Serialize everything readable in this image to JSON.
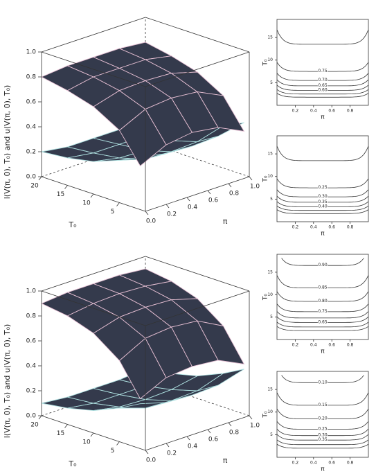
{
  "chart_data": [
    {
      "type": "surface",
      "zlabel": "l(V(π, 0), T₀)   and   u(V(π, 0), T₀)",
      "xlabel": "π",
      "ylabel": "T₀",
      "x": [
        0,
        0.25,
        0.5,
        0.75,
        1
      ],
      "y": [
        20,
        15,
        10,
        5,
        1
      ],
      "surfaces": [
        {
          "color": "#aee0e0",
          "z": [
            [
              0.2,
              0.17,
              0.17,
              0.17,
              0.2
            ],
            [
              0.22,
              0.19,
              0.19,
              0.19,
              0.22
            ],
            [
              0.26,
              0.22,
              0.21,
              0.22,
              0.26
            ],
            [
              0.34,
              0.28,
              0.27,
              0.28,
              0.34
            ],
            [
              0.42,
              0.38,
              0.37,
              0.38,
              0.42
            ]
          ]
        },
        {
          "color": "#e6bfd3",
          "z": [
            [
              0.8,
              0.82,
              0.82,
              0.82,
              0.8
            ],
            [
              0.76,
              0.8,
              0.8,
              0.8,
              0.76
            ],
            [
              0.7,
              0.76,
              0.77,
              0.76,
              0.7
            ],
            [
              0.58,
              0.68,
              0.7,
              0.68,
              0.58
            ],
            [
              0.35,
              0.45,
              0.48,
              0.45,
              0.35
            ]
          ]
        }
      ],
      "xlim": [
        0,
        1
      ],
      "xticks": [
        {
          "value": 0,
          "label": "0.0"
        },
        0.2,
        0.4,
        0.6,
        0.8,
        {
          "value": 1,
          "label": "1.0"
        }
      ],
      "ylim": [
        0,
        20
      ],
      "yticks": [
        5,
        10,
        15,
        20
      ],
      "zlim": [
        0,
        1
      ],
      "zticks": [
        {
          "value": 0,
          "label": "0.0"
        },
        0.2,
        0.4,
        0.6,
        0.8,
        {
          "value": 1,
          "label": "1.0"
        }
      ]
    },
    {
      "type": "contour",
      "xlabel": "π",
      "ylabel": "T₀",
      "xlim": [
        0,
        1
      ],
      "xticks": [
        0.2,
        0.4,
        0.6,
        0.8
      ],
      "ylim": [
        0,
        19
      ],
      "yticks": [
        5,
        10,
        15
      ],
      "contours": [
        {
          "t0": 13.5
        },
        {
          "label": "0.75",
          "t0": 7.5
        },
        {
          "label": "0.70",
          "t0": 5.5
        },
        {
          "label": "0.65",
          "t0": 4.3
        },
        {
          "label": "0.60",
          "t0": 3.3
        },
        {
          "t0": 2.5
        },
        {
          "t0": 1.8
        }
      ]
    },
    {
      "type": "contour",
      "xlabel": "π",
      "ylabel": "T₀",
      "xlim": [
        0,
        1
      ],
      "xticks": [
        0.2,
        0.4,
        0.6,
        0.8
      ],
      "ylim": [
        0,
        19
      ],
      "yticks": [
        5,
        10,
        15
      ],
      "contours": [
        {
          "t0": 13.5
        },
        {
          "label": "0.25",
          "t0": 7.5
        },
        {
          "label": "0.30",
          "t0": 5.5
        },
        {
          "label": "0.35",
          "t0": 4.3
        },
        {
          "label": "0.40",
          "t0": 3.3
        },
        {
          "t0": 2.5
        },
        {
          "t0": 1.8
        }
      ]
    },
    {
      "type": "surface",
      "zlabel": "l(V(π, 0), T₀)   and   u(V(π, 0), T₀)",
      "xlabel": "π",
      "ylabel": "T₀",
      "x": [
        0,
        0.25,
        0.5,
        0.75,
        1
      ],
      "y": [
        20,
        15,
        10,
        5,
        1
      ],
      "surfaces": [
        {
          "color": "#aee0e0",
          "z": [
            [
              0.1,
              0.08,
              0.08,
              0.08,
              0.1
            ],
            [
              0.13,
              0.1,
              0.1,
              0.1,
              0.13
            ],
            [
              0.18,
              0.14,
              0.13,
              0.14,
              0.18
            ],
            [
              0.27,
              0.2,
              0.19,
              0.2,
              0.27
            ],
            [
              0.36,
              0.3,
              0.29,
              0.3,
              0.36
            ]
          ]
        },
        {
          "color": "#e6bfd3",
          "z": [
            [
              0.9,
              0.92,
              0.92,
              0.92,
              0.9
            ],
            [
              0.87,
              0.9,
              0.91,
              0.9,
              0.87
            ],
            [
              0.8,
              0.86,
              0.87,
              0.86,
              0.8
            ],
            [
              0.65,
              0.76,
              0.78,
              0.76,
              0.65
            ],
            [
              0.4,
              0.5,
              0.52,
              0.5,
              0.4
            ]
          ]
        }
      ],
      "xlim": [
        0,
        1
      ],
      "xticks": [
        {
          "value": 0,
          "label": "0.0"
        },
        0.2,
        0.4,
        0.6,
        0.8,
        {
          "value": 1,
          "label": "1.0"
        }
      ],
      "ylim": [
        0,
        20
      ],
      "yticks": [
        5,
        10,
        15,
        20
      ],
      "zlim": [
        0,
        1
      ],
      "zticks": [
        {
          "value": 0,
          "label": "0.0"
        },
        0.2,
        0.4,
        0.6,
        0.8,
        {
          "value": 1,
          "label": "1.0"
        }
      ]
    },
    {
      "type": "contour",
      "xlabel": "π",
      "ylabel": "T₀",
      "xlim": [
        0,
        1
      ],
      "xticks": [
        0.2,
        0.4,
        0.6,
        0.8
      ],
      "ylim": [
        0,
        19
      ],
      "yticks": [
        5,
        10,
        15
      ],
      "contours": [
        {
          "label": "0.90",
          "t0": 16.5
        },
        {
          "label": "0.85",
          "t0": 11.5
        },
        {
          "label": "0.80",
          "t0": 8.5
        },
        {
          "label": "0.75",
          "t0": 6.2
        },
        {
          "t0": 4.8
        },
        {
          "label": "0.65",
          "t0": 3.8
        },
        {
          "t0": 2.8
        },
        {
          "t0": 2.0
        }
      ]
    },
    {
      "type": "contour",
      "xlabel": "π",
      "ylabel": "T₀",
      "xlim": [
        0,
        1
      ],
      "xticks": [
        0.2,
        0.4,
        0.6,
        0.8
      ],
      "ylim": [
        0,
        19
      ],
      "yticks": [
        5,
        10,
        15
      ],
      "contours": [
        {
          "label": "0.10",
          "t0": 16.5
        },
        {
          "label": "0.15",
          "t0": 11.5
        },
        {
          "label": "0.20",
          "t0": 8.5
        },
        {
          "label": "0.25",
          "t0": 6.2
        },
        {
          "label": "0.30",
          "t0": 4.8
        },
        {
          "label": "0.35",
          "t0": 3.8
        },
        {
          "t0": 2.8
        },
        {
          "t0": 2.0
        }
      ]
    }
  ]
}
